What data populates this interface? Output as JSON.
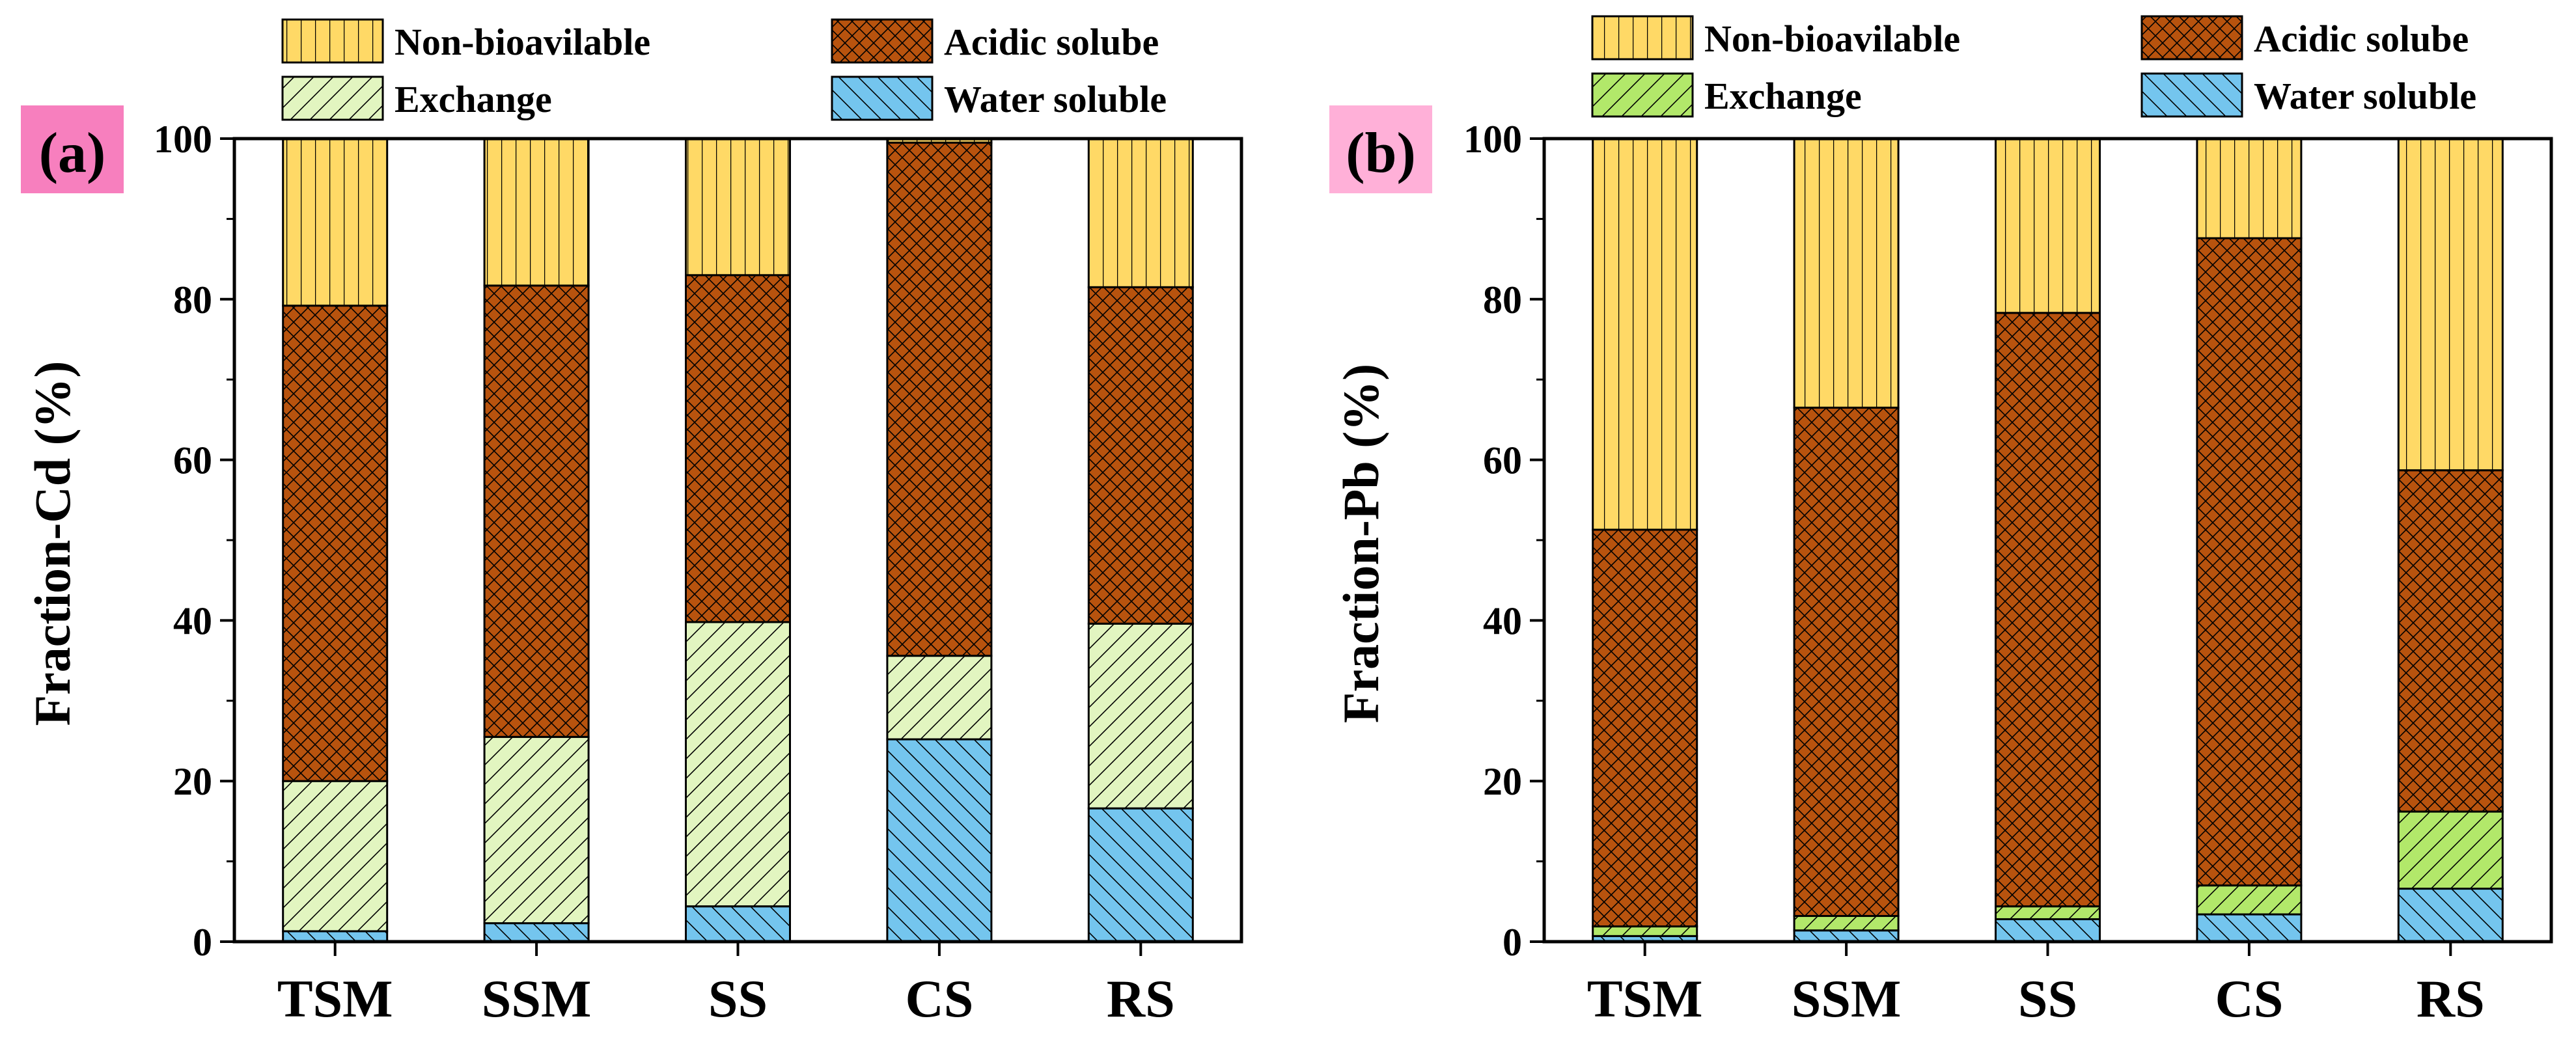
{
  "legend": {
    "non_bioavailable": "Non-bioavilable",
    "acidic_soluble": "Acidic solube",
    "exchange": "Exchange",
    "water_soluble": "Water soluble"
  },
  "colors": {
    "non_bioavailable": "#FFD966",
    "acidic_soluble": "#B8530E",
    "exchange_a": "#E2F5C0",
    "exchange_b": "#B2E86A",
    "water_soluble": "#74C5EE",
    "panel_label_a": "#F77FBE",
    "panel_label_b": "#FFB0D8"
  },
  "chart_data": [
    {
      "type": "bar",
      "stacked": true,
      "panel_label": "(a)",
      "ylabel": "Fraction-Cd (%)",
      "ylim": [
        0,
        100
      ],
      "yticks": [
        0,
        20,
        40,
        60,
        80,
        100
      ],
      "categories": [
        "TSM",
        "SSM",
        "SS",
        "CS",
        "RS"
      ],
      "series": [
        {
          "name": "Water soluble",
          "key": "water_soluble",
          "values": [
            1.3,
            2.3,
            4.4,
            25.2,
            16.6
          ]
        },
        {
          "name": "Exchange",
          "key": "exchange",
          "values": [
            18.7,
            23.2,
            35.4,
            10.4,
            23.0
          ]
        },
        {
          "name": "Acidic solube",
          "key": "acidic_soluble",
          "values": [
            59.2,
            56.2,
            43.2,
            63.9,
            41.9
          ]
        },
        {
          "name": "Non-bioavilable",
          "key": "non_bioavailable",
          "values": [
            20.8,
            18.3,
            17.0,
            0.5,
            18.5
          ]
        }
      ]
    },
    {
      "type": "bar",
      "stacked": true,
      "panel_label": "(b)",
      "ylabel": "Fraction-Pb (%)",
      "ylim": [
        0,
        100
      ],
      "yticks": [
        0,
        20,
        40,
        60,
        80,
        100
      ],
      "categories": [
        "TSM",
        "SSM",
        "SS",
        "CS",
        "RS"
      ],
      "series": [
        {
          "name": "Water soluble",
          "key": "water_soluble",
          "values": [
            0.7,
            1.4,
            2.8,
            3.4,
            6.6
          ]
        },
        {
          "name": "Exchange",
          "key": "exchange",
          "values": [
            1.2,
            1.8,
            1.6,
            3.6,
            9.6
          ]
        },
        {
          "name": "Acidic solube",
          "key": "acidic_soluble",
          "values": [
            49.4,
            63.3,
            73.9,
            80.6,
            42.5
          ]
        },
        {
          "name": "Non-bioavilable",
          "key": "non_bioavailable",
          "values": [
            48.7,
            33.5,
            21.7,
            12.4,
            41.3
          ]
        }
      ]
    }
  ]
}
